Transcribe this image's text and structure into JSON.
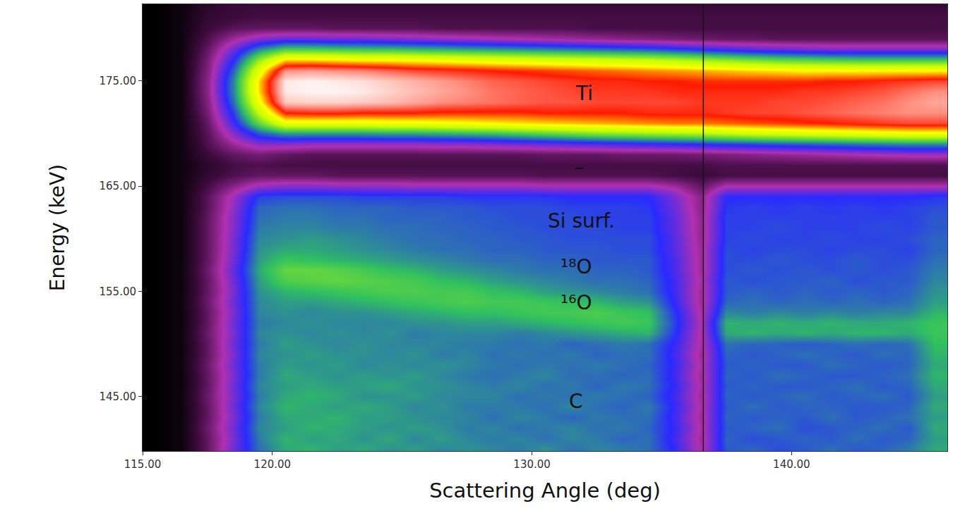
{
  "chart_data": {
    "type": "heatmap",
    "x_label": "Scattering Angle (deg)",
    "y_label": "Energy (keV)",
    "xlim": [
      115,
      146
    ],
    "ylim": [
      139.8,
      182.3
    ],
    "xticks": [
      {
        "value": 115,
        "label": "115.00"
      },
      {
        "value": 120,
        "label": "120.00"
      },
      {
        "value": 130,
        "label": "130.00"
      },
      {
        "value": 140,
        "label": "140.00"
      }
    ],
    "yticks": [
      {
        "value": 145,
        "label": "145.00"
      },
      {
        "value": 155,
        "label": "155.00"
      },
      {
        "value": 165,
        "label": "165.00"
      },
      {
        "value": 175,
        "label": "175.00"
      }
    ],
    "grid": false,
    "zlim": [
      0,
      100
    ],
    "vlines": [
      136.6
    ],
    "annotations": [
      {
        "text": "Ti",
        "x": 132.0,
        "y": 173.8
      },
      {
        "text": "–",
        "x": 131.8,
        "y": 166.8
      },
      {
        "text": "Si surf.",
        "x": 131.9,
        "y": 161.7
      },
      {
        "text": "¹⁸O",
        "x": 131.7,
        "y": 157.3
      },
      {
        "text": "¹⁶O",
        "x": 131.7,
        "y": 153.9
      },
      {
        "text": "C",
        "x": 131.7,
        "y": 144.5
      }
    ],
    "x": [
      115.5,
      116.5,
      117.5,
      118.5,
      119.5,
      120.5,
      121.5,
      122.5,
      123.5,
      124.5,
      125.5,
      126.5,
      127.5,
      128.5,
      129.5,
      130.5,
      131.5,
      132.5,
      133.5,
      134.5,
      135.5,
      136.5,
      137.5,
      138.5,
      139.5,
      140.5,
      141.5,
      142.5,
      143.5,
      144.5,
      145.5
    ],
    "y": [
      140,
      141,
      142,
      143,
      144,
      145,
      146,
      147,
      148,
      149,
      150,
      151,
      152,
      153,
      154,
      155,
      156,
      157,
      158,
      159,
      160,
      161,
      162,
      163,
      164,
      165,
      166,
      167,
      168,
      169,
      170,
      171,
      172,
      173,
      174,
      175,
      176,
      177,
      178,
      179,
      180,
      181,
      182
    ],
    "z": [
      [
        0,
        2,
        12,
        26,
        38,
        43,
        44,
        42,
        43,
        41,
        42,
        40,
        41,
        40,
        39,
        41,
        38,
        40,
        39,
        38,
        31,
        19,
        36,
        37,
        35,
        36,
        38,
        36,
        37,
        39,
        43
      ],
      [
        0,
        2,
        12,
        25,
        39,
        44,
        42,
        43,
        41,
        43,
        40,
        42,
        40,
        39,
        40,
        38,
        40,
        39,
        37,
        38,
        30,
        18,
        37,
        35,
        36,
        37,
        36,
        38,
        36,
        37,
        42
      ],
      [
        0,
        2,
        13,
        26,
        40,
        42,
        44,
        43,
        42,
        41,
        42,
        41,
        39,
        40,
        38,
        39,
        40,
        38,
        39,
        37,
        31,
        19,
        36,
        37,
        38,
        35,
        36,
        37,
        38,
        36,
        43
      ],
      [
        0,
        2,
        12,
        25,
        39,
        43,
        43,
        44,
        42,
        42,
        41,
        40,
        40,
        38,
        40,
        39,
        37,
        39,
        38,
        38,
        30,
        18,
        37,
        36,
        37,
        36,
        38,
        36,
        37,
        38,
        42
      ],
      [
        0,
        2,
        12,
        26,
        40,
        44,
        43,
        42,
        43,
        42,
        40,
        41,
        39,
        39,
        39,
        38,
        40,
        38,
        37,
        39,
        31,
        19,
        36,
        38,
        36,
        37,
        37,
        36,
        36,
        37,
        43
      ],
      [
        0,
        2,
        13,
        25,
        39,
        43,
        44,
        43,
        41,
        41,
        42,
        40,
        40,
        40,
        38,
        39,
        38,
        39,
        38,
        37,
        30,
        18,
        37,
        36,
        37,
        38,
        36,
        37,
        38,
        36,
        42
      ],
      [
        0,
        2,
        12,
        26,
        40,
        42,
        43,
        42,
        42,
        43,
        41,
        41,
        40,
        39,
        40,
        38,
        39,
        37,
        39,
        38,
        31,
        19,
        36,
        37,
        36,
        36,
        37,
        38,
        36,
        37,
        43
      ],
      [
        0,
        2,
        12,
        25,
        39,
        43,
        42,
        41,
        42,
        41,
        42,
        40,
        39,
        38,
        39,
        40,
        38,
        38,
        37,
        38,
        30,
        18,
        37,
        36,
        38,
        37,
        36,
        36,
        37,
        38,
        44
      ],
      [
        0,
        2,
        13,
        26,
        39,
        42,
        41,
        42,
        40,
        41,
        40,
        41,
        40,
        39,
        38,
        39,
        38,
        39,
        38,
        37,
        31,
        19,
        36,
        37,
        36,
        36,
        38,
        37,
        36,
        37,
        43
      ],
      [
        0,
        2,
        12,
        25,
        40,
        41,
        42,
        41,
        41,
        40,
        41,
        39,
        40,
        38,
        39,
        38,
        39,
        37,
        38,
        38,
        30,
        18,
        37,
        36,
        37,
        38,
        37,
        36,
        38,
        37,
        44
      ],
      [
        0,
        2,
        12,
        26,
        39,
        42,
        41,
        40,
        41,
        40,
        40,
        40,
        39,
        39,
        38,
        39,
        37,
        38,
        39,
        38,
        31,
        19,
        38,
        37,
        37,
        36,
        37,
        38,
        37,
        38,
        45
      ],
      [
        0,
        2,
        13,
        25,
        40,
        41,
        40,
        41,
        40,
        41,
        39,
        40,
        40,
        40,
        39,
        40,
        41,
        42,
        43,
        44,
        33,
        19,
        43,
        44,
        43,
        44,
        43,
        44,
        44,
        43,
        46
      ],
      [
        0,
        2,
        12,
        26,
        39,
        40,
        41,
        40,
        40,
        40,
        41,
        41,
        42,
        42,
        43,
        44,
        45,
        46,
        47,
        46,
        34,
        20,
        44,
        43,
        44,
        43,
        44,
        43,
        43,
        44,
        46
      ],
      [
        0,
        2,
        12,
        25,
        40,
        41,
        40,
        41,
        41,
        42,
        43,
        44,
        45,
        45,
        46,
        47,
        47,
        48,
        46,
        45,
        33,
        19,
        40,
        39,
        40,
        39,
        40,
        39,
        40,
        40,
        44
      ],
      [
        0,
        2,
        13,
        26,
        40,
        42,
        42,
        43,
        44,
        45,
        46,
        47,
        48,
        47,
        47,
        46,
        45,
        44,
        42,
        41,
        31,
        18,
        37,
        38,
        37,
        38,
        37,
        38,
        37,
        38,
        42
      ],
      [
        0,
        2,
        12,
        25,
        41,
        44,
        45,
        46,
        47,
        48,
        48,
        47,
        47,
        45,
        44,
        42,
        41,
        40,
        39,
        38,
        30,
        18,
        36,
        37,
        36,
        37,
        36,
        37,
        36,
        37,
        41
      ],
      [
        0,
        2,
        12,
        26,
        42,
        48,
        49,
        50,
        49,
        48,
        47,
        45,
        44,
        42,
        41,
        40,
        39,
        38,
        38,
        37,
        30,
        19,
        36,
        35,
        36,
        36,
        37,
        35,
        36,
        36,
        40
      ],
      [
        0,
        2,
        13,
        27,
        43,
        50,
        50,
        49,
        47,
        45,
        44,
        42,
        41,
        40,
        39,
        38,
        38,
        37,
        37,
        36,
        29,
        18,
        35,
        36,
        35,
        36,
        35,
        36,
        35,
        36,
        39
      ],
      [
        0,
        2,
        12,
        26,
        42,
        46,
        45,
        44,
        43,
        42,
        41,
        40,
        39,
        38,
        38,
        37,
        37,
        36,
        36,
        36,
        29,
        18,
        35,
        35,
        36,
        35,
        35,
        36,
        35,
        35,
        38
      ],
      [
        0,
        2,
        12,
        25,
        41,
        43,
        43,
        42,
        41,
        40,
        39,
        38,
        38,
        37,
        37,
        36,
        36,
        36,
        35,
        35,
        28,
        18,
        35,
        34,
        35,
        35,
        34,
        35,
        35,
        34,
        37
      ],
      [
        0,
        2,
        12,
        25,
        40,
        41,
        42,
        41,
        40,
        39,
        38,
        38,
        37,
        37,
        36,
        36,
        35,
        35,
        35,
        35,
        28,
        17,
        34,
        35,
        34,
        34,
        35,
        34,
        34,
        35,
        37
      ],
      [
        0,
        2,
        12,
        24,
        39,
        40,
        40,
        39,
        39,
        38,
        38,
        37,
        37,
        36,
        36,
        35,
        35,
        35,
        34,
        34,
        27,
        17,
        34,
        34,
        35,
        34,
        34,
        34,
        35,
        34,
        36
      ],
      [
        0,
        2,
        12,
        24,
        38,
        39,
        39,
        38,
        38,
        37,
        37,
        37,
        36,
        36,
        35,
        35,
        35,
        34,
        34,
        34,
        27,
        17,
        34,
        34,
        34,
        34,
        34,
        34,
        34,
        34,
        36
      ],
      [
        0,
        2,
        11,
        23,
        37,
        38,
        38,
        37,
        37,
        37,
        36,
        36,
        36,
        35,
        35,
        35,
        34,
        34,
        34,
        33,
        26,
        16,
        33,
        34,
        33,
        34,
        33,
        34,
        33,
        34,
        35
      ],
      [
        0,
        2,
        11,
        22,
        34,
        35,
        35,
        35,
        34,
        34,
        34,
        34,
        33,
        33,
        33,
        33,
        32,
        32,
        32,
        32,
        25,
        16,
        32,
        32,
        32,
        32,
        32,
        32,
        32,
        32,
        33
      ],
      [
        0,
        2,
        9,
        16,
        22,
        24,
        24,
        23,
        23,
        23,
        22,
        22,
        22,
        22,
        22,
        21,
        21,
        21,
        21,
        21,
        18,
        12,
        20,
        20,
        20,
        20,
        20,
        20,
        20,
        20,
        20
      ],
      [
        0,
        2,
        7,
        10,
        12,
        12,
        12,
        11,
        11,
        11,
        11,
        11,
        11,
        11,
        11,
        10,
        10,
        10,
        10,
        10,
        9,
        8,
        9,
        9,
        9,
        9,
        9,
        9,
        9,
        9,
        9
      ],
      [
        0,
        2,
        6,
        9,
        10,
        9,
        9,
        9,
        9,
        9,
        9,
        9,
        9,
        9,
        9,
        9,
        9,
        9,
        9,
        9,
        9,
        9,
        10,
        10,
        10,
        10,
        10,
        10,
        10,
        10,
        10
      ],
      [
        0,
        2,
        8,
        12,
        14,
        12,
        11,
        11,
        11,
        11,
        11,
        11,
        11,
        11,
        11,
        12,
        12,
        12,
        13,
        13,
        13,
        14,
        15,
        16,
        17,
        18,
        19,
        20,
        21,
        22,
        22
      ],
      [
        0,
        2,
        10,
        18,
        24,
        24,
        23,
        23,
        23,
        23,
        23,
        24,
        24,
        25,
        26,
        27,
        28,
        29,
        30,
        31,
        32,
        33,
        34,
        35,
        36,
        37,
        38,
        39,
        40,
        41,
        41
      ],
      [
        0,
        2,
        11,
        24,
        36,
        42,
        42,
        42,
        42,
        43,
        43,
        44,
        45,
        46,
        48,
        50,
        52,
        54,
        55,
        56,
        57,
        58,
        60,
        62,
        63,
        64,
        65,
        66,
        67,
        68,
        68
      ],
      [
        0,
        2,
        12,
        30,
        50,
        66,
        66,
        66,
        66,
        67,
        67,
        68,
        69,
        70,
        71,
        72,
        73,
        74,
        75,
        76,
        77,
        77,
        78,
        79,
        80,
        81,
        82,
        83,
        84,
        85,
        85
      ],
      [
        0,
        2,
        14,
        34,
        60,
        82,
        83,
        83,
        82,
        82,
        82,
        81,
        81,
        81,
        81,
        82,
        82,
        82,
        82,
        83,
        83,
        83,
        84,
        85,
        85,
        86,
        87,
        88,
        89,
        90,
        90
      ],
      [
        0,
        2,
        15,
        38,
        68,
        95,
        96,
        96,
        95,
        94,
        92,
        90,
        89,
        88,
        87,
        86,
        86,
        85,
        85,
        85,
        85,
        84,
        84,
        84,
        85,
        85,
        86,
        87,
        88,
        90,
        92
      ],
      [
        0,
        2,
        16,
        40,
        72,
        98,
        99,
        99,
        98,
        96,
        94,
        92,
        90,
        88,
        87,
        86,
        85,
        84,
        84,
        84,
        83,
        83,
        83,
        83,
        83,
        84,
        84,
        85,
        86,
        88,
        90
      ],
      [
        0,
        2,
        16,
        40,
        72,
        98,
        99,
        98,
        97,
        95,
        93,
        91,
        89,
        87,
        86,
        85,
        84,
        83,
        83,
        82,
        82,
        81,
        81,
        81,
        81,
        81,
        82,
        82,
        83,
        84,
        85
      ],
      [
        0,
        2,
        15,
        37,
        66,
        90,
        91,
        90,
        89,
        87,
        85,
        84,
        83,
        82,
        81,
        80,
        79,
        78,
        77,
        76,
        75,
        74,
        73,
        72,
        71,
        70,
        70,
        70,
        70,
        70,
        70
      ],
      [
        0,
        2,
        14,
        32,
        55,
        72,
        72,
        71,
        70,
        70,
        69,
        68,
        67,
        66,
        65,
        64,
        63,
        62,
        61,
        60,
        58,
        56,
        54,
        52,
        50,
        49,
        48,
        47,
        47,
        47,
        47
      ],
      [
        0,
        2,
        12,
        26,
        40,
        48,
        48,
        47,
        46,
        46,
        45,
        44,
        43,
        42,
        41,
        40,
        39,
        38,
        37,
        36,
        34,
        32,
        30,
        28,
        27,
        26,
        25,
        25,
        25,
        25,
        25
      ],
      [
        0,
        2,
        10,
        18,
        24,
        27,
        27,
        26,
        26,
        25,
        24,
        23,
        22,
        21,
        20,
        19,
        18,
        17,
        16,
        15,
        14,
        13,
        12,
        12,
        11,
        11,
        11,
        11,
        11,
        11,
        11
      ],
      [
        0,
        2,
        8,
        11,
        12,
        12,
        12,
        11,
        11,
        11,
        11,
        10,
        10,
        10,
        10,
        10,
        10,
        9,
        9,
        9,
        9,
        9,
        9,
        9,
        9,
        9,
        9,
        9,
        9,
        9,
        9
      ],
      [
        0,
        2,
        7,
        8,
        9,
        9,
        9,
        9,
        9,
        9,
        9,
        9,
        9,
        9,
        9,
        9,
        9,
        9,
        9,
        9,
        9,
        9,
        9,
        9,
        9,
        9,
        9,
        9,
        9,
        9,
        9
      ],
      [
        0,
        2,
        6,
        8,
        8,
        8,
        8,
        8,
        8,
        8,
        8,
        8,
        8,
        8,
        8,
        8,
        8,
        8,
        8,
        8,
        8,
        8,
        8,
        8,
        8,
        8,
        8,
        8,
        8,
        8,
        8
      ]
    ]
  }
}
